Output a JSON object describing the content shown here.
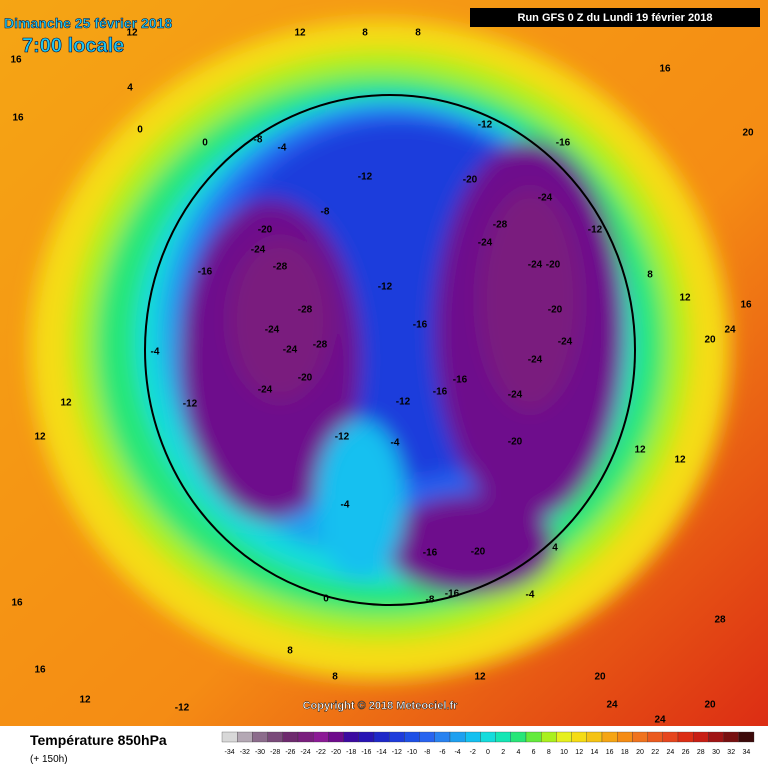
{
  "header": {
    "date": "Dimanche 25 février 2018",
    "time": "7:00 locale",
    "run": "Run GFS 0 Z du Lundi 19 février 2018"
  },
  "copyright": "Copyright © 2018 Meteociel.fr",
  "legend": {
    "title": "Température 850hPa",
    "subtitle": "(+ 150h)",
    "ticks": [
      -34,
      -32,
      -30,
      -28,
      -26,
      -24,
      -22,
      -20,
      -18,
      -16,
      -14,
      -12,
      -10,
      -8,
      -6,
      -4,
      -2,
      0,
      2,
      4,
      6,
      8,
      10,
      12,
      14,
      16,
      18,
      20,
      22,
      24,
      26,
      28,
      30,
      32,
      34
    ],
    "colors": [
      "#d8d8d8",
      "#b4a8b4",
      "#8c6c8c",
      "#7a4a7a",
      "#6e2a6e",
      "#7a1e7e",
      "#8c1a96",
      "#6e0a8c",
      "#3c0aa0",
      "#2814b4",
      "#1e28c8",
      "#1e3cdc",
      "#1e50e6",
      "#2864f0",
      "#2882f0",
      "#1ea0f0",
      "#14c0f0",
      "#14dcdc",
      "#14e6b4",
      "#28e678",
      "#64eb3c",
      "#aaf01e",
      "#e6f01e",
      "#f5dc14",
      "#f5c314",
      "#f5a514",
      "#f58c14",
      "#f0731e",
      "#eb5a1e",
      "#e6461e",
      "#dc2d14",
      "#c81e14",
      "#a01414",
      "#781010",
      "#3c0a0a"
    ]
  },
  "contour_labels": [
    16,
    16,
    12,
    12,
    8,
    8,
    4,
    0,
    0,
    -8,
    -4,
    -12,
    -12,
    -16,
    -20,
    -24,
    -28,
    -24,
    -24,
    -20,
    -12,
    -20,
    -24,
    -24,
    -24,
    -20,
    -16,
    -16,
    -12,
    -12,
    -16,
    -8,
    -20,
    -24,
    -28,
    -16,
    -28,
    -24,
    -28,
    -24,
    -20,
    -24,
    -12,
    -4,
    -12,
    -4,
    -4,
    -16,
    -20,
    -16,
    -8,
    0,
    -4,
    4,
    12,
    12,
    20,
    24,
    16,
    8,
    12,
    16,
    20,
    12,
    12,
    16,
    16,
    12,
    -12,
    8,
    8,
    12,
    20,
    24,
    24,
    28,
    20
  ]
}
